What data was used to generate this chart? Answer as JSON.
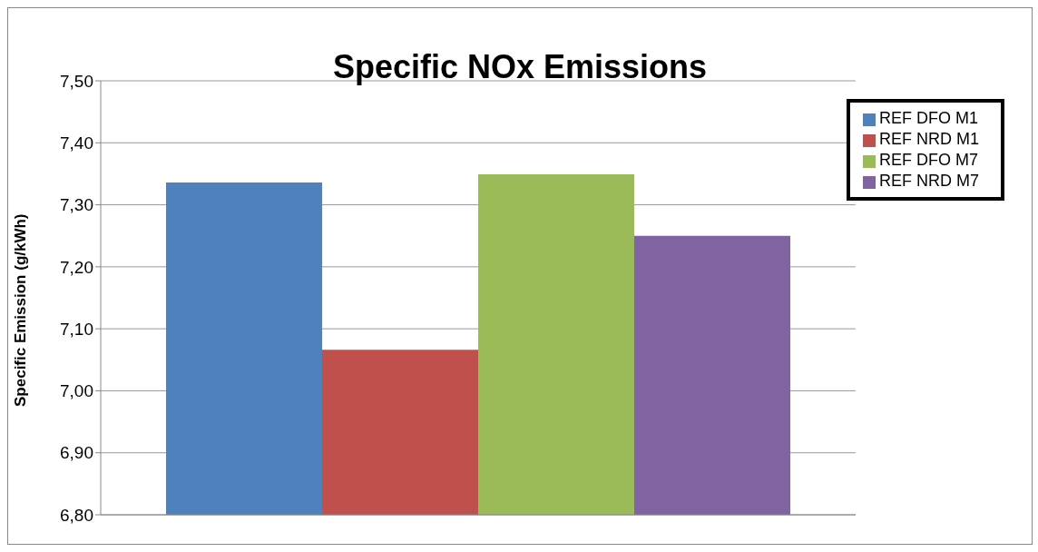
{
  "chart_data": {
    "type": "bar",
    "title": "Specific NOx Emissions",
    "ylabel": "Specific Emission (g/kWh)",
    "categories": [
      null
    ],
    "series": [
      {
        "name": "REF DFO M1",
        "color": "#4f81bd",
        "values": [
          7.336
        ]
      },
      {
        "name": "REF NRD M1",
        "color": "#c0504d",
        "values": [
          7.066
        ]
      },
      {
        "name": "REF DFO M7",
        "color": "#9bbb59",
        "values": [
          7.349
        ]
      },
      {
        "name": "REF NRD M7",
        "color": "#8064a2",
        "values": [
          7.25
        ]
      }
    ],
    "ylim": [
      6.8,
      7.5
    ],
    "yticks": [
      {
        "value": 6.8,
        "label": "6,80"
      },
      {
        "value": 6.9,
        "label": "6,90"
      },
      {
        "value": 7.0,
        "label": "7,00"
      },
      {
        "value": 7.1,
        "label": "7,10"
      },
      {
        "value": 7.2,
        "label": "7,20"
      },
      {
        "value": 7.3,
        "label": "7,30"
      },
      {
        "value": 7.4,
        "label": "7,40"
      },
      {
        "value": 7.5,
        "label": "7,50"
      }
    ],
    "grid": "y",
    "legend": "top right"
  }
}
